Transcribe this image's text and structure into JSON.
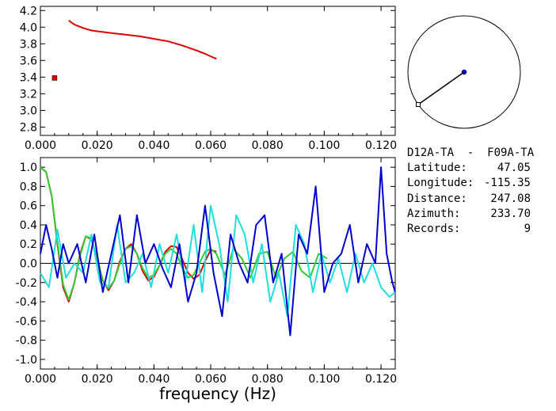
{
  "station_pair": "D12A-TA  -  F09A-TA",
  "info": [
    {
      "label": "Latitude:",
      "value": "47.05"
    },
    {
      "label": "Longitude:",
      "value": "-115.35"
    },
    {
      "label": "Distance:",
      "value": "247.08"
    },
    {
      "label": "Azimuth:",
      "value": "233.70"
    },
    {
      "label": "Records:",
      "value": "9"
    }
  ],
  "colors": {
    "red": "#dd0000",
    "blue": "#0000cc",
    "cyan": "#22dddd",
    "green": "#33cc33",
    "black": "#000000"
  },
  "chart_data": [
    {
      "type": "line",
      "xlim": [
        0.0,
        0.125
      ],
      "ylim": [
        2.7,
        4.25
      ],
      "xticks": [
        "0.000",
        "0.020",
        "0.040",
        "0.060",
        "0.080",
        "0.100",
        "0.120"
      ],
      "yticks": [
        "2.8",
        "3.0",
        "3.2",
        "3.4",
        "3.6",
        "3.8",
        "4.0",
        "4.2"
      ],
      "series": [
        {
          "color": "red",
          "style": "line",
          "x": [
            0.01,
            0.012,
            0.015,
            0.018,
            0.02,
            0.025,
            0.03,
            0.035,
            0.04,
            0.045,
            0.05,
            0.055,
            0.058,
            0.06,
            0.062
          ],
          "y": [
            4.08,
            4.03,
            3.99,
            3.96,
            3.95,
            3.93,
            3.91,
            3.89,
            3.86,
            3.83,
            3.78,
            3.72,
            3.68,
            3.65,
            3.62
          ]
        },
        {
          "color": "red",
          "style": "marker",
          "x": [
            0.005
          ],
          "y": [
            3.39
          ]
        }
      ]
    },
    {
      "type": "line",
      "xlim": [
        0.0,
        0.125
      ],
      "ylim": [
        -1.1,
        1.1
      ],
      "xticks": [
        "0.000",
        "0.020",
        "0.040",
        "0.060",
        "0.080",
        "0.100",
        "0.120"
      ],
      "yticks": [
        "-1.0",
        "-0.8",
        "-0.6",
        "-0.4",
        "-0.2",
        "0.0",
        "0.2",
        "0.4",
        "0.6",
        "0.8",
        "1.0"
      ],
      "xlabel": "frequency (Hz)",
      "series": [
        {
          "color": "red",
          "x": [
            0.0,
            0.002,
            0.004,
            0.006,
            0.008,
            0.01,
            0.012,
            0.014,
            0.016,
            0.018,
            0.02,
            0.022,
            0.024,
            0.026,
            0.028,
            0.03,
            0.032,
            0.034,
            0.036,
            0.038,
            0.04,
            0.042,
            0.044,
            0.046,
            0.048,
            0.05,
            0.052,
            0.054,
            0.056,
            0.058,
            0.06,
            0.062
          ],
          "y": [
            1.0,
            0.95,
            0.7,
            0.2,
            -0.25,
            -0.4,
            -0.2,
            0.1,
            0.28,
            0.25,
            0.05,
            -0.18,
            -0.28,
            -0.18,
            0.02,
            0.15,
            0.2,
            0.1,
            -0.08,
            -0.18,
            -0.14,
            -0.02,
            0.12,
            0.18,
            0.17,
            0.04,
            -0.1,
            -0.16,
            -0.12,
            0.02,
            0.14,
            0.12
          ]
        },
        {
          "color": "green",
          "x": [
            0.0,
            0.002,
            0.004,
            0.006,
            0.008,
            0.01,
            0.012,
            0.014,
            0.016,
            0.018,
            0.02,
            0.022,
            0.024,
            0.026,
            0.028,
            0.03,
            0.032,
            0.034,
            0.036,
            0.038,
            0.04,
            0.042,
            0.044,
            0.046,
            0.048,
            0.05,
            0.052,
            0.054,
            0.056,
            0.058,
            0.06,
            0.062,
            0.065,
            0.068,
            0.071,
            0.074,
            0.077,
            0.08,
            0.083,
            0.086,
            0.089,
            0.092,
            0.095,
            0.098,
            0.101
          ],
          "y": [
            1.0,
            0.95,
            0.7,
            0.22,
            -0.22,
            -0.38,
            -0.2,
            0.08,
            0.28,
            0.26,
            0.05,
            -0.18,
            -0.26,
            -0.18,
            0.0,
            0.15,
            0.18,
            0.1,
            -0.05,
            -0.15,
            -0.12,
            -0.02,
            0.1,
            0.15,
            0.1,
            -0.05,
            -0.15,
            -0.12,
            0.0,
            0.12,
            0.15,
            0.1,
            -0.12,
            0.15,
            0.05,
            -0.15,
            0.1,
            0.12,
            -0.15,
            0.05,
            0.12,
            -0.08,
            -0.15,
            0.1,
            0.05
          ]
        },
        {
          "color": "cyan",
          "x": [
            0.0,
            0.003,
            0.006,
            0.009,
            0.012,
            0.015,
            0.018,
            0.021,
            0.024,
            0.027,
            0.03,
            0.033,
            0.036,
            0.039,
            0.042,
            0.045,
            0.048,
            0.051,
            0.054,
            0.057,
            0.06,
            0.063,
            0.066,
            0.069,
            0.072,
            0.075,
            0.078,
            0.081,
            0.084,
            0.087,
            0.09,
            0.093,
            0.096,
            0.099,
            0.102,
            0.105,
            0.108,
            0.111,
            0.114,
            0.117,
            0.12,
            0.123,
            0.125
          ],
          "y": [
            -0.1,
            -0.25,
            0.35,
            -0.15,
            0.0,
            -0.1,
            0.3,
            -0.2,
            -0.25,
            0.4,
            -0.2,
            -0.1,
            0.1,
            -0.25,
            0.2,
            -0.1,
            0.3,
            -0.2,
            0.4,
            -0.3,
            0.6,
            0.2,
            -0.4,
            0.5,
            0.3,
            -0.2,
            0.2,
            -0.4,
            -0.1,
            -0.55,
            0.4,
            0.2,
            -0.3,
            0.1,
            -0.2,
            0.05,
            -0.3,
            0.1,
            -0.2,
            0.0,
            -0.25,
            -0.35,
            -0.3
          ]
        },
        {
          "color": "blue",
          "x": [
            0.0,
            0.002,
            0.004,
            0.006,
            0.008,
            0.01,
            0.013,
            0.016,
            0.019,
            0.022,
            0.025,
            0.028,
            0.031,
            0.034,
            0.037,
            0.04,
            0.043,
            0.046,
            0.049,
            0.052,
            0.055,
            0.058,
            0.061,
            0.064,
            0.067,
            0.07,
            0.073,
            0.076,
            0.079,
            0.082,
            0.085,
            0.088,
            0.091,
            0.094,
            0.097,
            0.1,
            0.103,
            0.106,
            0.109,
            0.112,
            0.115,
            0.118,
            0.12,
            0.122,
            0.124,
            0.125
          ],
          "y": [
            0.1,
            0.4,
            0.15,
            -0.15,
            0.2,
            0.0,
            0.2,
            -0.2,
            0.3,
            -0.3,
            0.1,
            0.5,
            -0.2,
            0.5,
            0.0,
            0.2,
            -0.05,
            -0.25,
            0.2,
            -0.4,
            -0.1,
            0.6,
            -0.1,
            -0.55,
            0.3,
            0.0,
            -0.2,
            0.4,
            0.5,
            -0.2,
            0.1,
            -0.75,
            0.3,
            0.1,
            0.8,
            -0.3,
            0.0,
            0.1,
            0.4,
            -0.2,
            0.2,
            0.0,
            1.0,
            0.1,
            -0.2,
            -0.3
          ]
        }
      ]
    }
  ],
  "map": {
    "circle": "azimuth-circle",
    "station_marker": "filled-circle",
    "event_marker": "open-square"
  }
}
